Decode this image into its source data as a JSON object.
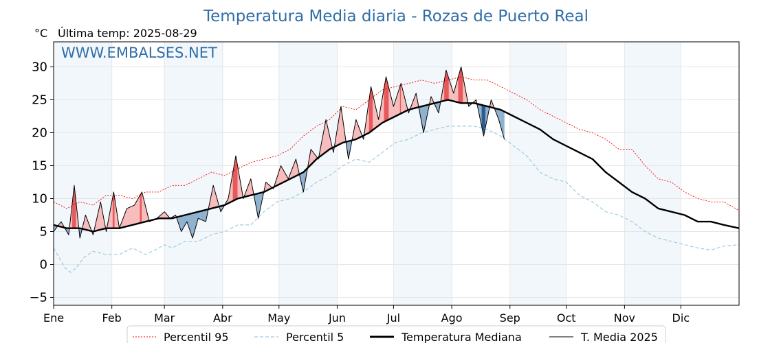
{
  "chart_data": {
    "type": "line",
    "title": "Temperatura Media diaria - Rozas de Puerto Real",
    "ylabel": "°C",
    "subtitle": "Última temp: 2025-08-29",
    "watermark": "WWW.EMBALSES.NET",
    "ylim": [
      -6.2,
      33.8
    ],
    "yticks": [
      -5,
      0,
      5,
      10,
      15,
      20,
      25,
      30
    ],
    "xlim": [
      1,
      366
    ],
    "months": [
      {
        "label": "Ene",
        "start": 1
      },
      {
        "label": "Feb",
        "start": 32
      },
      {
        "label": "Mar",
        "start": 60
      },
      {
        "label": "Abr",
        "start": 91
      },
      {
        "label": "May",
        "start": 121
      },
      {
        "label": "Jun",
        "start": 152
      },
      {
        "label": "Jul",
        "start": 182
      },
      {
        "label": "Ago",
        "start": 213
      },
      {
        "label": "Sep",
        "start": 244
      },
      {
        "label": "Oct",
        "start": 274
      },
      {
        "label": "Nov",
        "start": 305
      },
      {
        "label": "Dic",
        "start": 335
      }
    ],
    "grid": true,
    "legend_position": "bottom",
    "series": [
      {
        "name": "Percentil 95",
        "color": "#ff0000",
        "style": "dotted",
        "x": [
          1,
          8,
          15,
          22,
          29,
          36,
          43,
          50,
          57,
          64,
          71,
          78,
          85,
          92,
          99,
          106,
          113,
          120,
          127,
          134,
          141,
          148,
          155,
          162,
          169,
          176,
          183,
          190,
          197,
          204,
          211,
          218,
          225,
          232,
          239,
          246,
          253,
          260,
          267,
          274,
          281,
          288,
          295,
          302,
          309,
          316,
          323,
          330,
          337,
          344,
          351,
          358,
          366
        ],
        "values": [
          9.5,
          8.5,
          9.5,
          9.0,
          10.5,
          10.5,
          10.0,
          11.0,
          11.0,
          12.0,
          12.0,
          13.0,
          14.0,
          13.5,
          14.5,
          15.5,
          16.0,
          16.5,
          17.5,
          19.5,
          21.0,
          22.0,
          24.0,
          23.5,
          25.0,
          26.5,
          27.0,
          27.5,
          28.0,
          27.5,
          28.0,
          28.5,
          28.0,
          28.0,
          27.0,
          26.0,
          25.0,
          23.5,
          22.5,
          21.5,
          20.5,
          20.0,
          19.0,
          17.5,
          17.5,
          15.0,
          13.0,
          12.5,
          11.0,
          10.0,
          9.5,
          9.5,
          8.2
        ]
      },
      {
        "name": "Percentil 5",
        "color": "#9fcbe0",
        "style": "dashed",
        "x": [
          1,
          4,
          7,
          10,
          13,
          17,
          22,
          29,
          36,
          43,
          50,
          57,
          60,
          64,
          71,
          78,
          85,
          92,
          99,
          106,
          113,
          120,
          127,
          134,
          141,
          148,
          155,
          162,
          169,
          176,
          183,
          190,
          197,
          204,
          211,
          218,
          225,
          232,
          239,
          246,
          253,
          260,
          267,
          274,
          281,
          288,
          295,
          302,
          309,
          316,
          323,
          330,
          337,
          344,
          351,
          358,
          366
        ],
        "values": [
          2.5,
          1.0,
          -0.5,
          -1.2,
          -0.5,
          1.0,
          2.0,
          1.5,
          1.5,
          2.5,
          1.5,
          2.5,
          3.0,
          2.5,
          3.5,
          3.5,
          4.5,
          5.0,
          6.0,
          6.0,
          8.0,
          9.5,
          10.0,
          11.0,
          12.5,
          13.5,
          15.0,
          16.0,
          15.5,
          17.0,
          18.5,
          19.0,
          20.0,
          20.5,
          21.0,
          21.0,
          21.0,
          20.5,
          19.5,
          18.0,
          16.5,
          14.0,
          13.0,
          12.5,
          10.5,
          9.5,
          8.0,
          7.5,
          6.5,
          5.0,
          4.0,
          3.5,
          3.0,
          2.5,
          2.2,
          2.8,
          3.0
        ]
      },
      {
        "name": "Temperatura Mediana",
        "color": "#000000",
        "style": "solid-thick",
        "x": [
          1,
          8,
          15,
          22,
          29,
          36,
          43,
          50,
          57,
          64,
          71,
          78,
          85,
          92,
          99,
          106,
          113,
          120,
          127,
          134,
          141,
          148,
          155,
          162,
          169,
          176,
          183,
          190,
          197,
          204,
          211,
          218,
          225,
          232,
          239,
          246,
          253,
          260,
          267,
          274,
          281,
          288,
          295,
          302,
          309,
          316,
          323,
          330,
          337,
          344,
          351,
          358,
          366
        ],
        "values": [
          6.0,
          5.5,
          5.5,
          5.0,
          5.5,
          5.5,
          6.0,
          6.5,
          7.0,
          7.0,
          7.5,
          8.0,
          8.5,
          9.0,
          10.0,
          10.5,
          11.0,
          12.0,
          13.0,
          14.0,
          16.0,
          17.5,
          18.5,
          19.0,
          20.0,
          21.5,
          22.5,
          23.5,
          24.0,
          24.5,
          25.0,
          24.5,
          24.5,
          24.0,
          23.5,
          22.5,
          21.5,
          20.5,
          19.0,
          18.0,
          17.0,
          16.0,
          14.0,
          12.5,
          11.0,
          10.0,
          8.5,
          8.0,
          7.5,
          6.5,
          6.5,
          6.0,
          5.5
        ]
      },
      {
        "name": "T. Media 2025",
        "color": "#000000",
        "style": "solid-thin",
        "x": [
          1,
          5,
          9,
          12,
          15,
          18,
          22,
          26,
          29,
          33,
          36,
          40,
          44,
          48,
          52,
          56,
          60,
          63,
          66,
          69,
          72,
          75,
          78,
          82,
          86,
          90,
          94,
          98,
          102,
          106,
          110,
          114,
          118,
          122,
          126,
          130,
          134,
          138,
          142,
          146,
          150,
          154,
          158,
          162,
          166,
          170,
          174,
          178,
          182,
          186,
          190,
          194,
          198,
          202,
          206,
          210,
          214,
          218,
          222,
          226,
          230,
          234,
          238,
          241
        ],
        "values": [
          5.0,
          6.5,
          4.5,
          12.0,
          4.0,
          7.5,
          4.5,
          9.5,
          5.0,
          11.0,
          5.5,
          8.5,
          9.0,
          11.0,
          6.5,
          7.0,
          8.0,
          7.0,
          7.5,
          5.0,
          6.5,
          4.0,
          7.0,
          6.5,
          12.0,
          8.0,
          10.0,
          16.5,
          10.0,
          13.0,
          7.0,
          12.5,
          11.5,
          15.0,
          13.0,
          16.0,
          11.0,
          17.5,
          16.0,
          22.0,
          17.0,
          24.0,
          16.0,
          22.0,
          19.0,
          27.0,
          22.0,
          28.5,
          24.0,
          27.5,
          23.0,
          26.0,
          20.0,
          25.5,
          23.0,
          29.5,
          26.0,
          30.0,
          24.0,
          25.0,
          19.5,
          25.0,
          22.0,
          19.0
        ]
      }
    ]
  },
  "legend": {
    "items": [
      {
        "label": "Percentil 95"
      },
      {
        "label": "Percentil 5"
      },
      {
        "label": "Temperatura Mediana"
      },
      {
        "label": "T. Media 2025"
      }
    ]
  }
}
